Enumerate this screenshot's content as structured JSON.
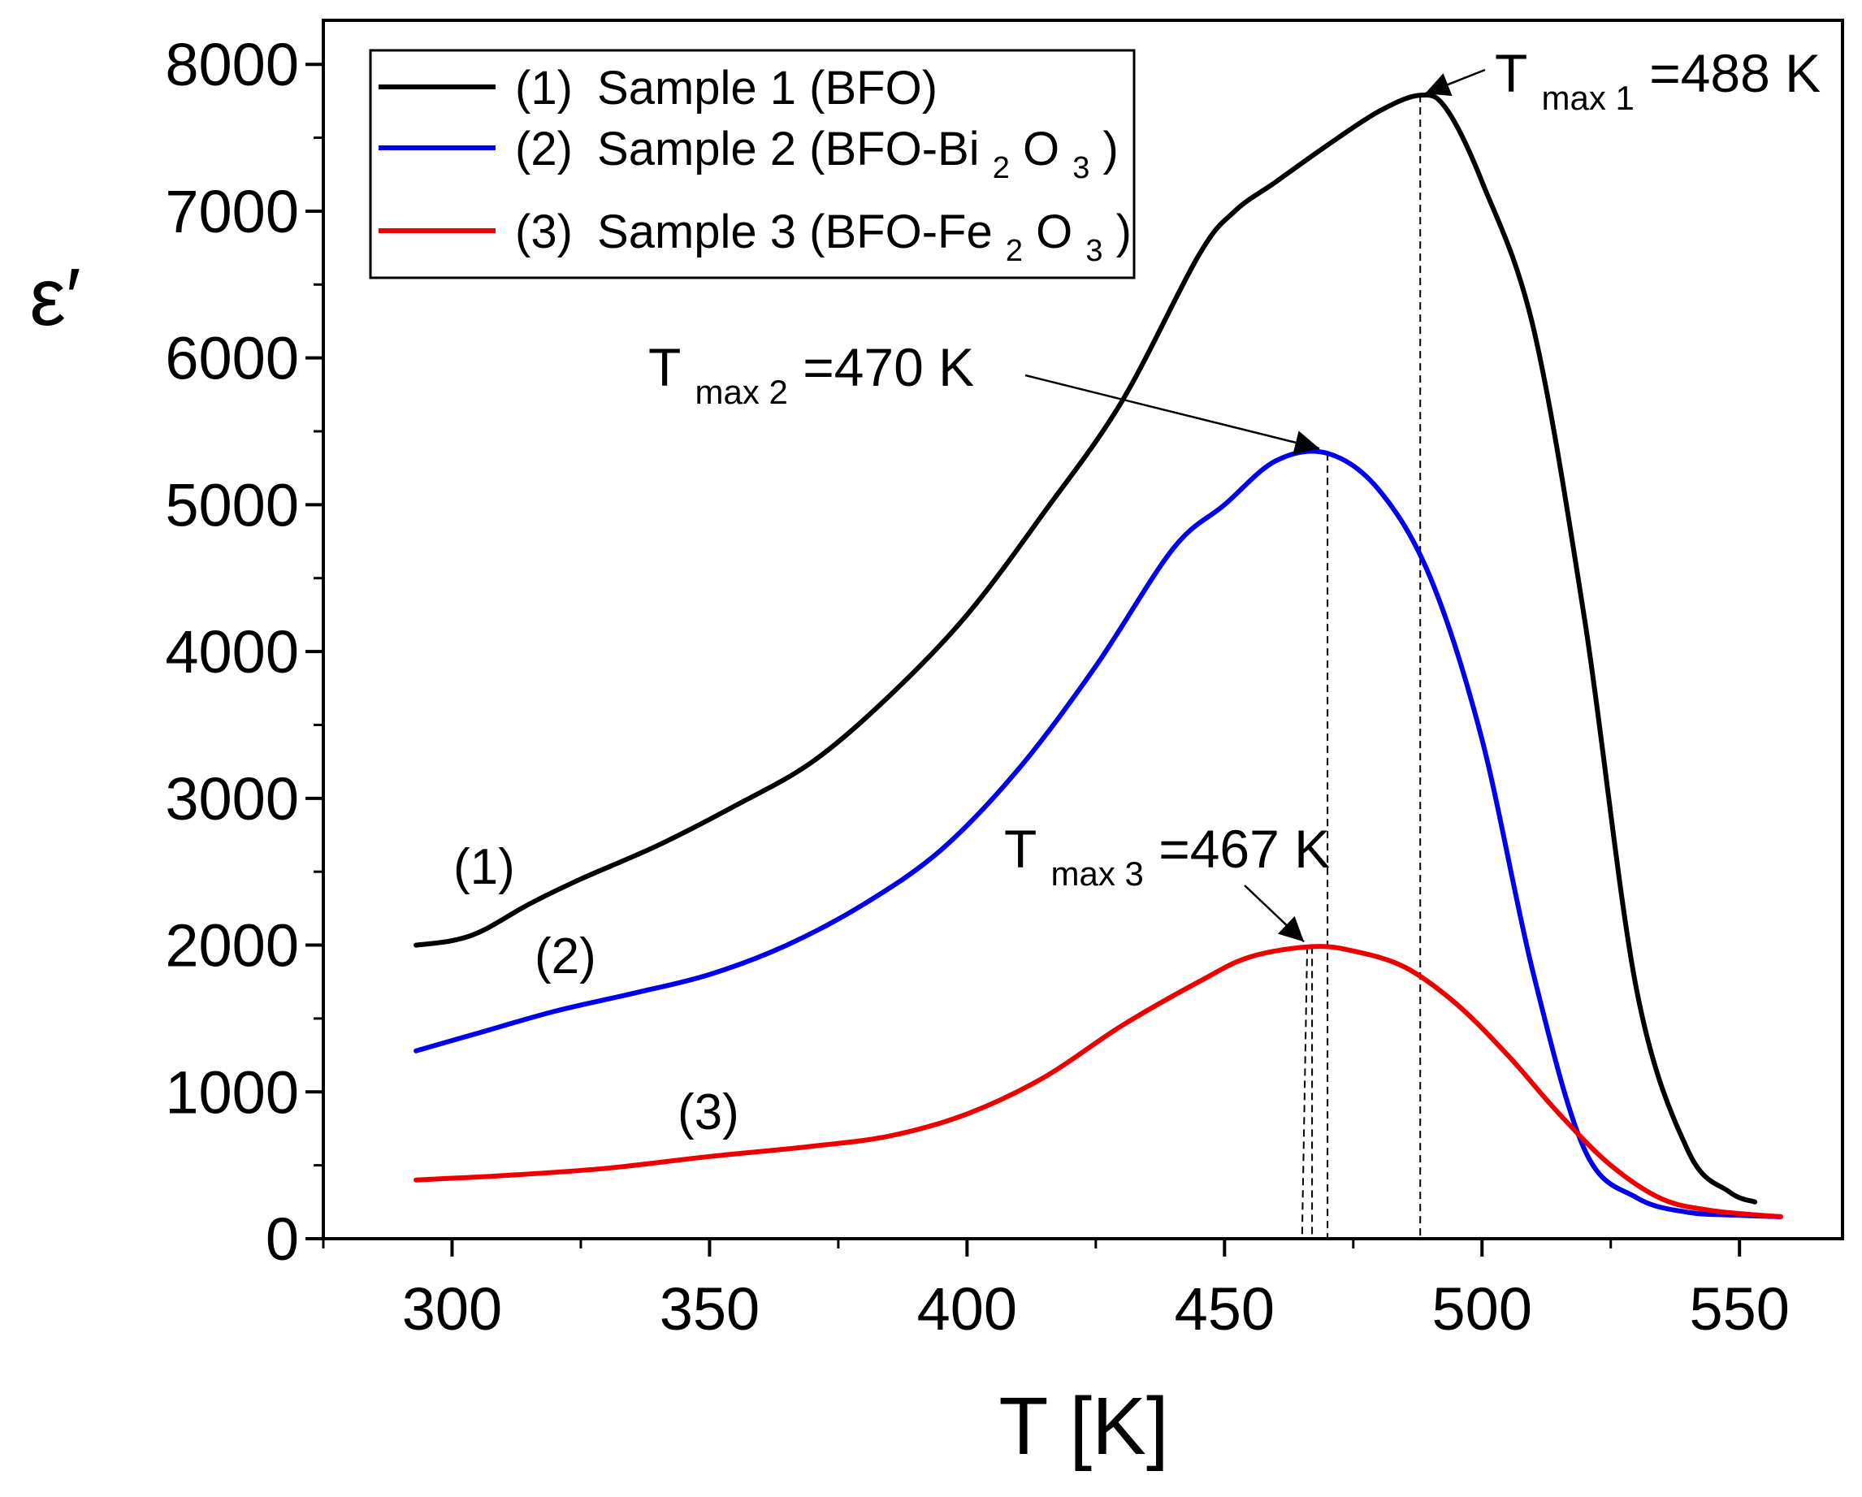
{
  "chart_data": {
    "type": "line",
    "xlabel": "T [K]",
    "ylabel": "ε′",
    "xlim": [
      275,
      570
    ],
    "ylim": [
      0,
      8300
    ],
    "x_ticks": [
      300,
      350,
      400,
      450,
      500,
      550
    ],
    "x_minor_ticks": [
      275,
      325,
      375,
      425,
      475,
      525
    ],
    "y_ticks": [
      0,
      1000,
      2000,
      3000,
      4000,
      5000,
      6000,
      7000,
      8000
    ],
    "y_minor_ticks": [
      500,
      1500,
      2500,
      3500,
      4500,
      5500,
      6500,
      7500
    ],
    "legend_position": "top-left",
    "series": [
      {
        "name": "Sample 1 (BFO)",
        "legend_prefix": "(1)",
        "legend_text": "Sample 1 (BFO)",
        "curve_label": "(1)",
        "color": "#000000",
        "x": [
          293,
          300,
          306,
          315,
          325,
          340,
          355,
          370,
          385,
          400,
          415,
          430,
          445,
          452,
          460,
          470,
          480,
          488,
          493,
          500,
          510,
          520,
          530,
          540,
          548,
          553
        ],
        "y": [
          2000,
          2030,
          2100,
          2280,
          2450,
          2680,
          2950,
          3250,
          3700,
          4250,
          4950,
          5700,
          6700,
          7000,
          7200,
          7450,
          7680,
          7790,
          7700,
          7200,
          6200,
          4200,
          1700,
          600,
          320,
          250
        ]
      },
      {
        "name": "Sample 2 (BFO-Bi2O3)",
        "legend_prefix": "(2)",
        "legend_text_main": "Sample 2 (BFO-Bi",
        "legend_sub1": "2",
        "legend_mid": "O",
        "legend_sub2": "3",
        "legend_end": ")",
        "curve_label": "(2)",
        "color": "#0000ee",
        "x": [
          293,
          305,
          320,
          335,
          350,
          365,
          380,
          395,
          410,
          425,
          440,
          450,
          460,
          470,
          480,
          490,
          500,
          510,
          520,
          530,
          540,
          550,
          558
        ],
        "y": [
          1280,
          1400,
          1550,
          1670,
          1800,
          2000,
          2280,
          2650,
          3200,
          3900,
          4700,
          5000,
          5300,
          5350,
          5100,
          4500,
          3400,
          1800,
          600,
          280,
          180,
          160,
          150
        ]
      },
      {
        "name": "Sample 3 (BFO-Fe2O3)",
        "legend_prefix": "(3)",
        "legend_text_main": "Sample 3 (BFO-Fe",
        "legend_sub1": "2",
        "legend_mid": "O",
        "legend_sub2": "3",
        "legend_end": ")",
        "curve_label": "(3)",
        "color": "#ee0000",
        "x": [
          293,
          310,
          330,
          350,
          370,
          385,
          400,
          415,
          430,
          445,
          455,
          467,
          475,
          485,
          495,
          505,
          515,
          525,
          535,
          545,
          558
        ],
        "y": [
          400,
          430,
          480,
          560,
          630,
          700,
          850,
          1100,
          1450,
          1750,
          1920,
          1990,
          1960,
          1850,
          1600,
          1250,
          850,
          500,
          270,
          190,
          150
        ]
      }
    ],
    "annotations": [
      {
        "series": 0,
        "label": "T",
        "sub": "max 1",
        "value_text": "=488 K",
        "x": 488,
        "y": 7790
      },
      {
        "series": 1,
        "label": "T",
        "sub": "max 2",
        "value_text": "=470 K",
        "x": 470,
        "y": 5350
      },
      {
        "series": 2,
        "label": "T",
        "sub": "max 3",
        "value_text": "=467 K",
        "x": 467,
        "y": 1990
      }
    ]
  }
}
